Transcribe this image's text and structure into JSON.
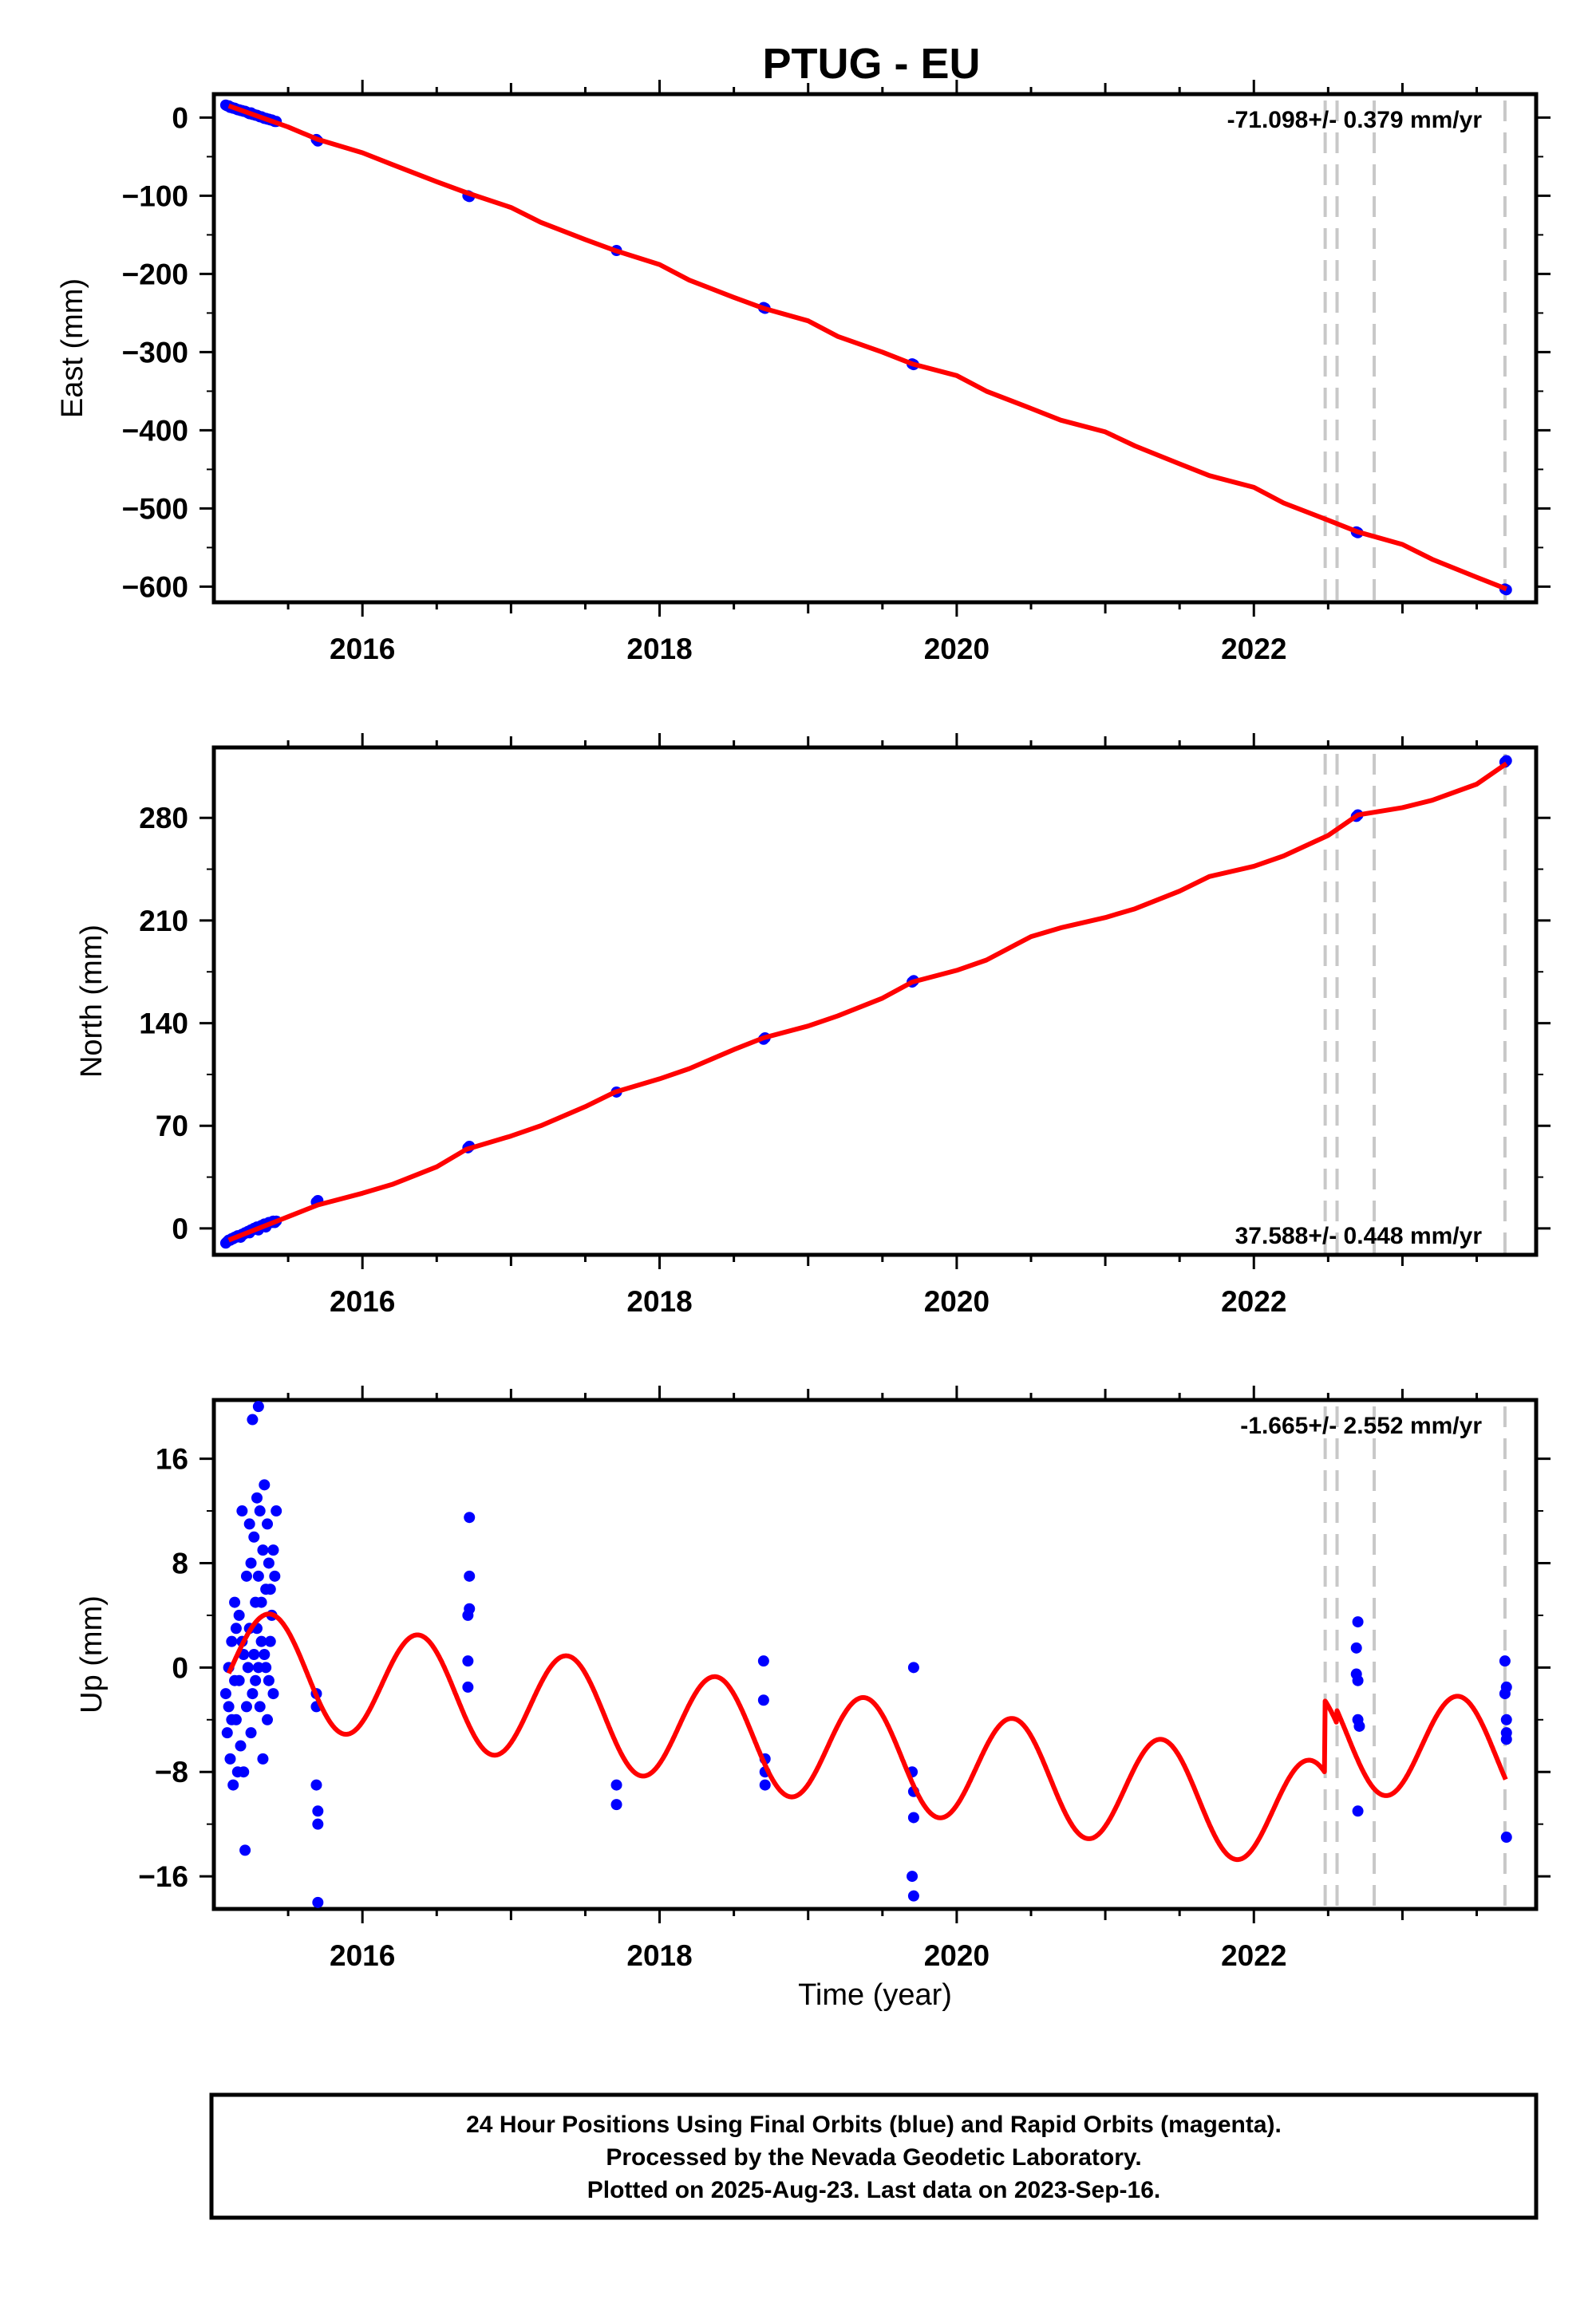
{
  "title": "PTUG - EU",
  "colors": {
    "model": "#ff0000",
    "final_obs": "#0000ff",
    "rapid_obs": "#ff00ff",
    "event_lines": "#c8c8c8",
    "frame": "#000000"
  },
  "footer": {
    "line1": "24 Hour Positions Using Final Orbits (blue) and Rapid Orbits (magenta).",
    "line2": "Processed by the Nevada Geodetic Laboratory.",
    "line3": "Plotted on 2025-Aug-23. Last data on 2023-Sep-16."
  },
  "chart_data": [
    {
      "type": "scatter",
      "component": "east",
      "ylabel": "East (mm)",
      "xlabel": "",
      "xlim": [
        2015.0,
        2023.9
      ],
      "ylim": [
        -620,
        30
      ],
      "xticks": [
        2016,
        2018,
        2020,
        2022
      ],
      "xtick_labels": [
        "2016",
        "2018",
        "2020",
        "2022"
      ],
      "yticks": [
        0,
        -100,
        -200,
        -300,
        -400,
        -500,
        -600
      ],
      "ytick_labels": [
        "0",
        "−100",
        "−200",
        "−300",
        "−400",
        "−500",
        "−600"
      ],
      "rate_label": "-71.098+/- 0.379 mm/yr",
      "rate_position": "top-right",
      "event_lines": [
        2022.48,
        2022.56,
        2022.81,
        2023.69
      ],
      "series": [
        {
          "role": "observations",
          "x": [
            2015.08,
            2015.09,
            2015.1,
            2015.11,
            2015.12,
            2015.13,
            2015.14,
            2015.15,
            2015.16,
            2015.17,
            2015.18,
            2015.19,
            2015.2,
            2015.21,
            2015.22,
            2015.23,
            2015.24,
            2015.25,
            2015.26,
            2015.27,
            2015.28,
            2015.29,
            2015.3,
            2015.31,
            2015.32,
            2015.33,
            2015.34,
            2015.35,
            2015.36,
            2015.37,
            2015.38,
            2015.39,
            2015.4,
            2015.41,
            2015.42,
            2015.69,
            2015.7,
            2016.71,
            2016.72,
            2017.71,
            2018.7,
            2018.71,
            2019.7,
            2019.71,
            2022.69,
            2022.7,
            2023.69,
            2023.7
          ],
          "y": [
            16,
            15,
            15,
            13,
            13,
            12,
            12,
            11,
            10,
            10,
            9,
            9,
            8,
            8,
            7,
            6,
            5,
            6,
            4,
            4,
            3,
            3,
            2,
            1,
            1,
            0,
            -1,
            -1,
            -2,
            -2,
            -3,
            -3,
            -4,
            -5,
            -5,
            -28,
            -30,
            -100,
            -101,
            -170,
            -243,
            -244,
            -315,
            -316,
            -530,
            -531,
            -603,
            -604
          ]
        },
        {
          "role": "model",
          "x": [
            2015.1,
            2015.5,
            2015.7,
            2016.0,
            2016.2,
            2016.5,
            2016.7,
            2017.0,
            2017.2,
            2017.5,
            2017.7,
            2018.0,
            2018.2,
            2018.5,
            2018.7,
            2019.0,
            2019.2,
            2019.5,
            2019.7,
            2020.0,
            2020.2,
            2020.5,
            2020.7,
            2021.0,
            2021.2,
            2021.5,
            2021.7,
            2022.0,
            2022.2,
            2022.5,
            2022.7,
            2023.0,
            2023.2,
            2023.5,
            2023.7
          ],
          "y": [
            15,
            -12,
            -28,
            -45,
            -60,
            -82,
            -96,
            -115,
            -134,
            -156,
            -170,
            -188,
            -208,
            -230,
            -244,
            -260,
            -280,
            -300,
            -315,
            -330,
            -350,
            -372,
            -387,
            -402,
            -420,
            -443,
            -458,
            -473,
            -493,
            -515,
            -530,
            -546,
            -565,
            -588,
            -603
          ]
        }
      ]
    },
    {
      "type": "scatter",
      "component": "north",
      "ylabel": "North (mm)",
      "xlabel": "",
      "xlim": [
        2015.0,
        2023.9
      ],
      "ylim": [
        -18,
        328
      ],
      "xticks": [
        2016,
        2018,
        2020,
        2022
      ],
      "xtick_labels": [
        "2016",
        "2018",
        "2020",
        "2022"
      ],
      "yticks": [
        0,
        70,
        140,
        210,
        280
      ],
      "ytick_labels": [
        "0",
        "70",
        "140",
        "210",
        "280"
      ],
      "rate_label": "37.588+/- 0.448 mm/yr",
      "rate_position": "bottom-right",
      "event_lines": [
        2022.48,
        2022.56,
        2022.81,
        2023.69
      ],
      "series": [
        {
          "role": "observations",
          "x": [
            2015.08,
            2015.09,
            2015.1,
            2015.11,
            2015.12,
            2015.13,
            2015.14,
            2015.15,
            2015.16,
            2015.17,
            2015.18,
            2015.19,
            2015.2,
            2015.21,
            2015.22,
            2015.23,
            2015.24,
            2015.25,
            2015.26,
            2015.27,
            2015.28,
            2015.29,
            2015.3,
            2015.31,
            2015.32,
            2015.33,
            2015.34,
            2015.35,
            2015.36,
            2015.37,
            2015.38,
            2015.39,
            2015.4,
            2015.41,
            2015.42,
            2015.69,
            2015.7,
            2016.71,
            2016.72,
            2017.71,
            2018.7,
            2018.71,
            2019.7,
            2019.71,
            2022.69,
            2022.7,
            2023.69,
            2023.7
          ],
          "y": [
            -10,
            -9,
            -8,
            -8,
            -7,
            -7,
            -6,
            -6,
            -5,
            -5,
            -6,
            -4,
            -4,
            -3,
            -3,
            -2,
            -3,
            -1,
            -1,
            0,
            0,
            1,
            -1,
            1,
            2,
            2,
            3,
            1,
            3,
            4,
            4,
            4,
            5,
            4,
            5,
            18,
            19,
            55,
            56,
            93,
            129,
            130,
            168,
            169,
            281,
            282,
            318,
            319
          ]
        },
        {
          "role": "model",
          "x": [
            2015.1,
            2015.5,
            2015.7,
            2016.0,
            2016.2,
            2016.5,
            2016.7,
            2017.0,
            2017.2,
            2017.5,
            2017.7,
            2018.0,
            2018.2,
            2018.5,
            2018.7,
            2019.0,
            2019.2,
            2019.5,
            2019.7,
            2020.0,
            2020.2,
            2020.5,
            2020.7,
            2021.0,
            2021.2,
            2021.5,
            2021.7,
            2022.0,
            2022.2,
            2022.5,
            2022.7,
            2023.0,
            2023.2,
            2023.5,
            2023.7
          ],
          "y": [
            -8,
            8,
            16,
            24,
            30,
            42,
            54,
            63,
            70,
            83,
            93,
            102,
            109,
            122,
            130,
            138,
            145,
            157,
            168,
            176,
            183,
            199,
            205,
            212,
            218,
            230,
            240,
            247,
            254,
            268,
            282,
            287,
            292,
            303,
            317
          ]
        }
      ]
    },
    {
      "type": "scatter",
      "component": "up",
      "ylabel": "Up (mm)",
      "xlabel": "Time (year)",
      "xlim": [
        2015.0,
        2023.9
      ],
      "ylim": [
        -18.5,
        20.5
      ],
      "xticks": [
        2016,
        2018,
        2020,
        2022
      ],
      "xtick_labels": [
        "2016",
        "2018",
        "2020",
        "2022"
      ],
      "yticks": [
        16,
        8,
        0,
        -8,
        -16
      ],
      "ytick_labels": [
        "16",
        "8",
        "0",
        "−8",
        "−16"
      ],
      "rate_label": "-1.665+/- 2.552 mm/yr",
      "rate_position": "top-right",
      "event_lines": [
        2022.48,
        2022.56,
        2022.81,
        2023.69
      ],
      "series": [
        {
          "role": "observations",
          "x": [
            2015.08,
            2015.09,
            2015.1,
            2015.1,
            2015.11,
            2015.12,
            2015.12,
            2015.13,
            2015.14,
            2015.14,
            2015.15,
            2015.15,
            2015.16,
            2015.17,
            2015.17,
            2015.18,
            2015.19,
            2015.19,
            2015.2,
            2015.2,
            2015.21,
            2015.22,
            2015.22,
            2015.23,
            2015.24,
            2015.24,
            2015.25,
            2015.25,
            2015.26,
            2015.26,
            2015.27,
            2015.27,
            2015.28,
            2015.28,
            2015.29,
            2015.29,
            2015.3,
            2015.3,
            2015.3,
            2015.31,
            2015.31,
            2015.32,
            2015.32,
            2015.33,
            2015.33,
            2015.34,
            2015.34,
            2015.35,
            2015.35,
            2015.36,
            2015.36,
            2015.37,
            2015.37,
            2015.38,
            2015.38,
            2015.39,
            2015.4,
            2015.4,
            2015.41,
            2015.42,
            2015.69,
            2015.69,
            2015.69,
            2015.7,
            2015.7,
            2015.7,
            2016.71,
            2016.71,
            2016.71,
            2016.72,
            2016.72,
            2016.72,
            2017.71,
            2017.71,
            2018.7,
            2018.7,
            2018.71,
            2018.71,
            2018.71,
            2019.7,
            2019.7,
            2019.71,
            2019.71,
            2019.71,
            2019.71,
            2022.69,
            2022.69,
            2022.7,
            2022.7,
            2022.7,
            2022.7,
            2022.71,
            2023.69,
            2023.69,
            2023.7,
            2023.7,
            2023.7,
            2023.7,
            2023.7
          ],
          "y": [
            -2,
            -5,
            -3,
            0,
            -7,
            -4,
            2,
            -9,
            -1,
            5,
            -4,
            3,
            -8,
            -1,
            4,
            -6,
            2,
            12,
            -8,
            1,
            -14,
            -3,
            7,
            0,
            3,
            11,
            -5,
            8,
            -2,
            19,
            1,
            10,
            5,
            -1,
            13,
            3,
            20,
            0,
            7,
            -3,
            12,
            5,
            2,
            9,
            -7,
            14,
            1,
            6,
            0,
            -4,
            11,
            8,
            -1,
            6,
            2,
            4,
            9,
            -2,
            7,
            12,
            -2,
            -3,
            -9,
            -11,
            -12,
            -18,
            0.5,
            -1.5,
            4,
            7,
            4.5,
            11.5,
            -9,
            -10.5,
            -2.5,
            0.5,
            -7,
            -8,
            -9,
            -16,
            -8,
            0,
            -11.5,
            -17.5,
            -9.5,
            1.5,
            -0.5,
            3.5,
            -4,
            -1,
            -11,
            -4.5,
            0.5,
            -2,
            -1.5,
            -4,
            -5.5,
            -13,
            -5
          ]
        },
        {
          "role": "model",
          "period_yr": 1.0,
          "amplitude_mm": 4.2,
          "phase_peak_yr": 0.38,
          "trend_mm_per_yr": -1.6,
          "offset_mm": 0.5,
          "x_range": [
            2015.1,
            2023.7
          ],
          "step_offsets": [
            {
              "at": 2022.48,
              "dy": 5.5
            },
            {
              "at": 2022.56,
              "dy": 1.0
            }
          ]
        }
      ]
    }
  ]
}
